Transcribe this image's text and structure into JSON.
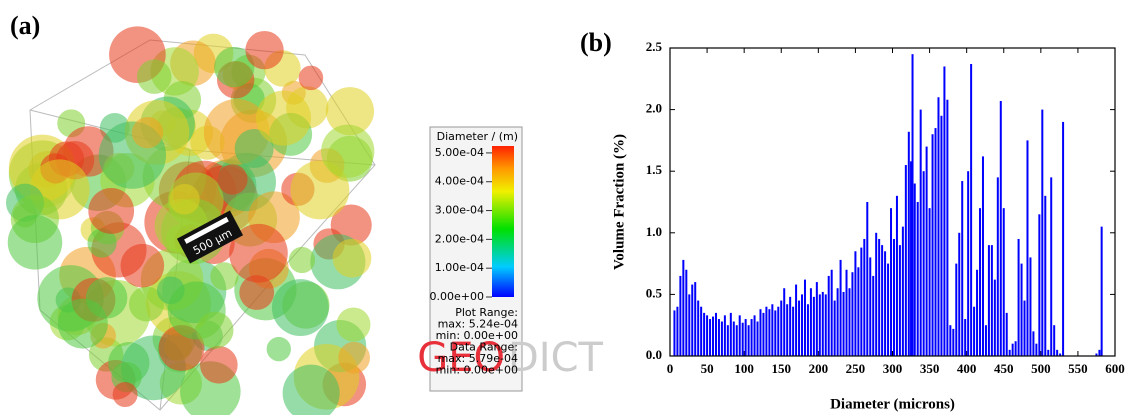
{
  "panel_a": {
    "label": "(a)",
    "scale_bar": "500 µm",
    "colorbar": {
      "title": "Diameter / (m)",
      "lim": [
        0,
        0.000524
      ],
      "ticks": [
        {
          "value": 0.0005,
          "label": "5.00e-04"
        },
        {
          "value": 0.0004,
          "label": "4.00e-04"
        },
        {
          "value": 0.0003,
          "label": "3.00e-04"
        },
        {
          "value": 0.0002,
          "label": "2.00e-04"
        },
        {
          "value": 0.0001,
          "label": "1.00e-04"
        },
        {
          "value": 0,
          "label": "0.00e+00"
        }
      ],
      "notes": [
        "Plot Range:",
        "max: 5.24e-04",
        "min: 0.00e+00",
        "Data Range:",
        "max: 5.79e-04",
        "min: 0.00e+00"
      ]
    },
    "logo": [
      "GEO",
      "DICT"
    ]
  },
  "chart_data": {
    "type": "bar",
    "panel_label": "(b)",
    "x_label": "Diameter (microns)",
    "y_label": "Volume Fraction (%)",
    "color": "#0000ff",
    "x": [
      6,
      10,
      14,
      18,
      22,
      26,
      30,
      34,
      38,
      42,
      46,
      50,
      54,
      58,
      62,
      66,
      70,
      74,
      78,
      82,
      86,
      90,
      94,
      98,
      102,
      106,
      110,
      114,
      118,
      122,
      126,
      130,
      134,
      138,
      142,
      146,
      150,
      154,
      158,
      162,
      166,
      170,
      174,
      178,
      182,
      186,
      190,
      194,
      198,
      202,
      206,
      210,
      214,
      218,
      222,
      226,
      230,
      234,
      238,
      242,
      246,
      250,
      254,
      258,
      262,
      266,
      270,
      274,
      278,
      282,
      286,
      290,
      294,
      298,
      302,
      306,
      310,
      314,
      318,
      322,
      325,
      327,
      330,
      334,
      338,
      342,
      346,
      350,
      354,
      358,
      362,
      366,
      370,
      374,
      378,
      382,
      386,
      390,
      394,
      398,
      402,
      406,
      410,
      414,
      418,
      422,
      426,
      430,
      434,
      438,
      442,
      446,
      450,
      454,
      458,
      462,
      466,
      470,
      474,
      478,
      482,
      486,
      490,
      494,
      498,
      502,
      506,
      510,
      514,
      518,
      522,
      526,
      530,
      575,
      579,
      582
    ],
    "values": [
      0.37,
      0.4,
      0.65,
      0.78,
      0.7,
      0.5,
      0.58,
      0.6,
      0.45,
      0.4,
      0.35,
      0.33,
      0.3,
      0.32,
      0.35,
      0.3,
      0.28,
      0.33,
      0.25,
      0.35,
      0.28,
      0.25,
      0.33,
      0.27,
      0.3,
      0.25,
      0.3,
      0.33,
      0.28,
      0.38,
      0.35,
      0.4,
      0.38,
      0.42,
      0.37,
      0.4,
      0.45,
      0.55,
      0.42,
      0.48,
      0.4,
      0.58,
      0.45,
      0.5,
      0.62,
      0.42,
      0.55,
      0.48,
      0.6,
      0.5,
      0.52,
      0.5,
      0.65,
      0.7,
      0.45,
      0.55,
      0.78,
      0.52,
      0.7,
      0.55,
      0.68,
      0.85,
      0.72,
      0.88,
      0.95,
      1.25,
      0.8,
      0.65,
      1.0,
      0.95,
      0.9,
      0.85,
      0.75,
      1.2,
      0.95,
      1.3,
      0.9,
      1.05,
      1.55,
      1.82,
      1.58,
      2.45,
      1.4,
      1.25,
      2.0,
      1.5,
      1.7,
      1.2,
      1.8,
      1.85,
      2.1,
      1.95,
      2.35,
      2.08,
      0.25,
      0.22,
      0.75,
      1.0,
      1.42,
      0.3,
      1.5,
      2.37,
      0.4,
      0.7,
      1.2,
      1.62,
      0.25,
      0.9,
      0.9,
      0.62,
      1.45,
      2.07,
      1.2,
      0.35,
      0.05,
      0.1,
      0.12,
      0.95,
      0.75,
      0.45,
      1.75,
      0.8,
      0.2,
      0.1,
      1.15,
      2.0,
      1.3,
      0.05,
      1.45,
      0.25,
      0.05,
      0.02,
      1.9,
      0.02,
      0.05,
      1.05
    ],
    "xlim": [
      0,
      600
    ],
    "xticks": [
      0,
      50,
      100,
      150,
      200,
      250,
      300,
      350,
      400,
      450,
      500,
      550,
      600
    ],
    "ylim": [
      0,
      2.5
    ],
    "yticks": [
      {
        "value": 0,
        "label": "0.0"
      },
      {
        "value": 0.5,
        "label": "0.5"
      },
      {
        "value": 1,
        "label": "1.0"
      },
      {
        "value": 1.5,
        "label": "1.5"
      },
      {
        "value": 2,
        "label": "2.0"
      },
      {
        "value": 2.5,
        "label": "2.5"
      }
    ]
  }
}
